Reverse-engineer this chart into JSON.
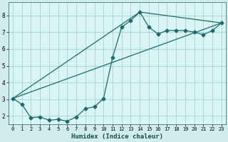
{
  "xlabel": "Humidex (Indice chaleur)",
  "bg_color": "#d0ecec",
  "plot_bg_color": "#d8f4f4",
  "grid_color": "#a0c8c8",
  "line_color": "#1a6b6b",
  "xlim": [
    -0.5,
    23.5
  ],
  "ylim": [
    1.5,
    8.8
  ],
  "yticks": [
    2,
    3,
    4,
    5,
    6,
    7,
    8
  ],
  "xticks": [
    0,
    1,
    2,
    3,
    4,
    5,
    6,
    7,
    8,
    9,
    10,
    11,
    12,
    13,
    14,
    15,
    16,
    17,
    18,
    19,
    20,
    21,
    22,
    23
  ],
  "curve_x": [
    0,
    1,
    2,
    3,
    4,
    5,
    6,
    7,
    8,
    9,
    10,
    11,
    12,
    13,
    14,
    15,
    16,
    17,
    18,
    19,
    20,
    21,
    22,
    23
  ],
  "curve_y": [
    3.05,
    2.7,
    1.9,
    1.95,
    1.75,
    1.8,
    1.7,
    1.95,
    2.45,
    2.55,
    3.05,
    5.5,
    7.3,
    7.7,
    8.2,
    7.3,
    6.9,
    7.1,
    7.1,
    7.1,
    7.0,
    6.85,
    7.1,
    7.55
  ],
  "line1_x": [
    0,
    23
  ],
  "line1_y": [
    3.05,
    7.55
  ],
  "line2_x": [
    0,
    14
  ],
  "line2_y": [
    3.05,
    8.2
  ],
  "line3_x": [
    14,
    23
  ],
  "line3_y": [
    8.2,
    7.55
  ]
}
